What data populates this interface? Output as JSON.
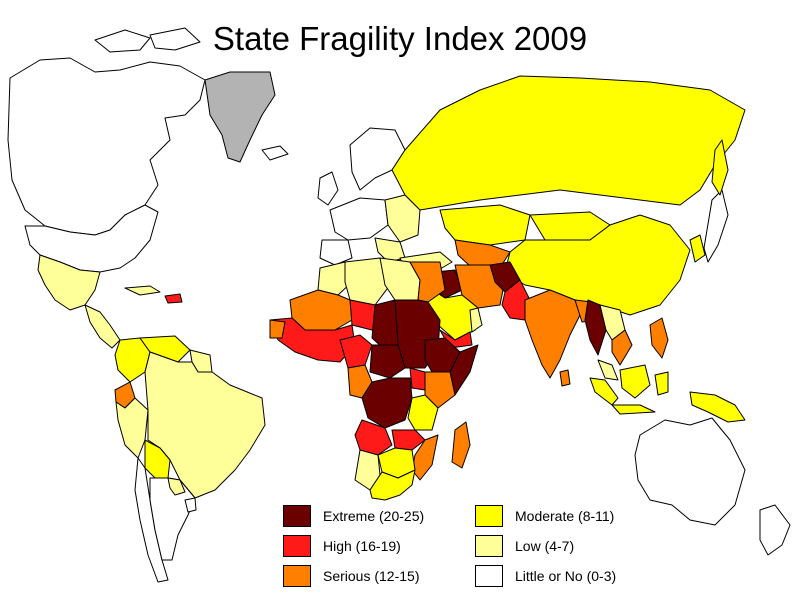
{
  "title": "State Fragility Index 2009",
  "legend": [
    {
      "label": "Extreme (20-25)",
      "color": "#6b0000"
    },
    {
      "label": "High (16-19)",
      "color": "#ff1a1a"
    },
    {
      "label": "Serious (12-15)",
      "color": "#ff8000"
    },
    {
      "label": "Moderate (8-11)",
      "color": "#ffff00"
    },
    {
      "label": "Low (4-7)",
      "color": "#ffff99"
    },
    {
      "label": "Little or No (0-3)",
      "color": "#ffffff"
    }
  ],
  "colors": {
    "no_data": "#b3b3b3",
    "border": "#000000",
    "background": "#ffffff"
  }
}
